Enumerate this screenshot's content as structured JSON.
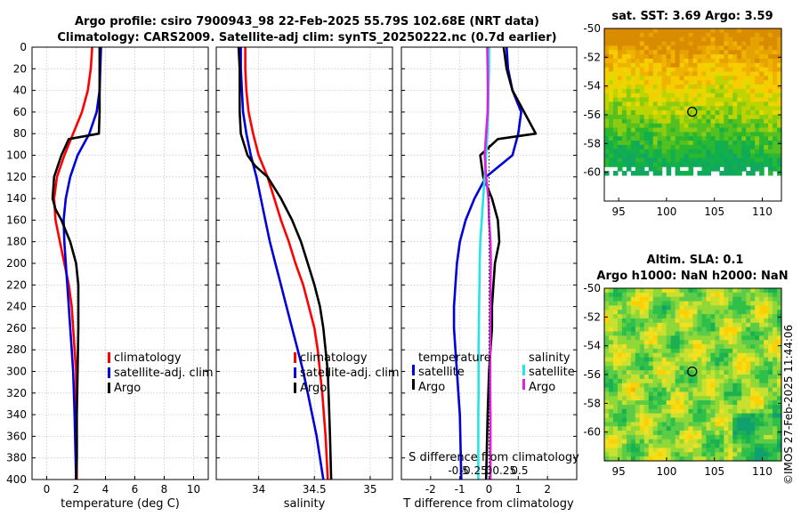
{
  "title": {
    "line1": "Argo profile: csiro 7900943_98 22-Feb-2025 55.79S 102.68E (NRT data)",
    "line2": "Climatology: CARS2009. Satellite-adj clim: synTS_20250222.nc (0.7d earlier)"
  },
  "colors": {
    "climatology": "#ff0000",
    "satellite_adj": "#0000dd",
    "argo": "#000000",
    "cyan": "#22e5e5",
    "magenta": "#dd22dd"
  },
  "depth_ticks": [
    "0",
    "20",
    "40",
    "60",
    "80",
    "100",
    "120",
    "140",
    "160",
    "180",
    "200",
    "220",
    "240",
    "260",
    "280",
    "300",
    "320",
    "340",
    "360",
    "380",
    "400"
  ],
  "temp_ticks": [
    "0",
    "2",
    "4",
    "6",
    "8",
    "10"
  ],
  "sal_ticks": [
    "34",
    "34.5",
    "35"
  ],
  "tdiff_ticks": [
    "-2",
    "-1",
    "0",
    "1",
    "2"
  ],
  "sdiff_ticks": [
    "-0.5",
    "-0.25",
    "0",
    "0.25",
    "0.5"
  ],
  "xlabels": {
    "temperature": "temperature (deg C)",
    "salinity": "salinity",
    "tdiff": "T difference from climatology",
    "sdiff": "S difference from climatology"
  },
  "legend_temp": [
    "climatology",
    "satellite-adj. clim",
    "Argo"
  ],
  "legend_sal": [
    "climatology",
    "satellite-adj. clim",
    "Argo"
  ],
  "legend_diff": {
    "temperature_header": "temperature",
    "salinity_header": "salinity",
    "satellite": "satellite",
    "argo": "Argo"
  },
  "map_sst": {
    "title": "sat. SST: 3.69 Argo: 3.59",
    "lat_ticks": [
      "-50",
      "-52",
      "-54",
      "-56",
      "-58",
      "-60"
    ],
    "lon_ticks": [
      "95",
      "100",
      "105",
      "110"
    ]
  },
  "map_sla": {
    "title1": "Altim. SLA: 0.1",
    "title2": "Argo h1000: NaN h2000: NaN",
    "lat_ticks": [
      "-50",
      "-52",
      "-54",
      "-56",
      "-58",
      "-60"
    ],
    "lon_ticks": [
      "95",
      "100",
      "105",
      "110"
    ]
  },
  "watermark": "©IMOS 27-Feb-2025 11:44:06",
  "chart_data": [
    {
      "type": "line",
      "title": "",
      "xlabel": "temperature (deg C)",
      "ylabel": "depth",
      "xlim": [
        -1,
        11
      ],
      "ylim": [
        400,
        0
      ],
      "series": [
        {
          "name": "climatology",
          "color": "#ff0000",
          "x": [
            3.1,
            3.0,
            2.8,
            2.4,
            1.8,
            1.2,
            0.7,
            0.5,
            0.6,
            0.9,
            1.2,
            1.5,
            1.7,
            1.8,
            1.9,
            2.0,
            2.0,
            2.05,
            2.05
          ],
          "y": [
            0,
            20,
            40,
            60,
            80,
            100,
            120,
            140,
            160,
            180,
            200,
            220,
            240,
            260,
            280,
            300,
            320,
            360,
            400
          ]
        },
        {
          "name": "satellite-adj. clim",
          "color": "#0000dd",
          "x": [
            3.7,
            3.65,
            3.6,
            3.4,
            2.9,
            2.1,
            1.6,
            1.3,
            1.15,
            1.2,
            1.3,
            1.4,
            1.5,
            1.6,
            1.7,
            1.8,
            1.9,
            2.0
          ],
          "y": [
            0,
            20,
            40,
            60,
            80,
            100,
            120,
            140,
            160,
            180,
            200,
            220,
            240,
            260,
            280,
            300,
            340,
            400
          ]
        },
        {
          "name": "Argo",
          "color": "#000000",
          "x": [
            3.6,
            3.6,
            3.6,
            3.6,
            3.55,
            1.5,
            1.0,
            0.5,
            0.4,
            0.6,
            1.0,
            1.3,
            1.6,
            1.8,
            2.0,
            2.15,
            2.15,
            2.1,
            2.05,
            2.05,
            2.0
          ],
          "y": [
            0,
            20,
            40,
            60,
            80,
            85,
            100,
            120,
            140,
            150,
            160,
            170,
            180,
            190,
            200,
            220,
            260,
            300,
            340,
            380,
            400
          ]
        }
      ]
    },
    {
      "type": "line",
      "xlabel": "salinity",
      "ylabel": "depth",
      "xlim": [
        33.62,
        35.2
      ],
      "ylim": [
        400,
        0
      ],
      "series": [
        {
          "name": "climatology",
          "color": "#ff0000",
          "x": [
            33.88,
            33.88,
            33.89,
            33.91,
            33.95,
            34.0,
            34.08,
            34.14,
            34.2,
            34.27,
            34.33,
            34.4,
            34.45,
            34.5,
            34.53,
            34.55,
            34.57,
            34.6,
            34.62
          ],
          "y": [
            0,
            20,
            40,
            60,
            80,
            100,
            120,
            140,
            160,
            180,
            200,
            220,
            240,
            260,
            280,
            300,
            320,
            360,
            400
          ]
        },
        {
          "name": "satellite-adj. clim",
          "color": "#0000dd",
          "x": [
            33.84,
            33.84,
            33.85,
            33.86,
            33.89,
            33.93,
            33.98,
            34.02,
            34.06,
            34.1,
            34.15,
            34.2,
            34.25,
            34.3,
            34.35,
            34.4,
            34.44,
            34.48,
            34.52,
            34.55,
            34.58
          ],
          "y": [
            0,
            20,
            40,
            60,
            80,
            100,
            120,
            140,
            160,
            180,
            200,
            220,
            240,
            260,
            280,
            300,
            320,
            340,
            360,
            380,
            400
          ]
        },
        {
          "name": "Argo",
          "color": "#000000",
          "x": [
            33.82,
            33.83,
            33.83,
            33.83,
            33.84,
            33.87,
            33.9,
            33.97,
            34.08,
            34.2,
            34.3,
            34.38,
            34.44,
            34.5,
            34.55,
            34.58,
            34.6,
            34.62,
            34.63,
            34.64,
            34.65
          ],
          "y": [
            0,
            20,
            40,
            60,
            80,
            90,
            100,
            110,
            120,
            140,
            160,
            180,
            200,
            220,
            240,
            260,
            280,
            300,
            330,
            360,
            400
          ]
        }
      ]
    },
    {
      "type": "line",
      "xlabel": "T difference from climatology",
      "xlabel2": "S difference from climatology",
      "xlim": [
        -3,
        3
      ],
      "ylim": [
        400,
        0
      ],
      "series": [
        {
          "name": "temperature satellite",
          "color": "#0000dd",
          "x": [
            0.6,
            0.65,
            0.8,
            1.1,
            1.0,
            0.8,
            -0.1,
            -0.5,
            -0.8,
            -1.0,
            -1.1,
            -1.15,
            -1.2,
            -1.2,
            -1.15,
            -1.1,
            -1.05,
            -1.0,
            -0.95
          ],
          "y": [
            0,
            20,
            40,
            60,
            80,
            100,
            120,
            140,
            160,
            180,
            200,
            220,
            240,
            260,
            280,
            300,
            320,
            340,
            400
          ]
        },
        {
          "name": "temperature Argo",
          "color": "#000000",
          "x": [
            0.5,
            0.6,
            0.8,
            1.2,
            1.6,
            0.3,
            -0.3,
            -0.2,
            0.1,
            0.3,
            0.35,
            0.2,
            0.15,
            0.1,
            0.1,
            0.05,
            0.0,
            -0.05,
            -0.1
          ],
          "y": [
            0,
            20,
            40,
            60,
            80,
            85,
            100,
            120,
            140,
            160,
            180,
            200,
            220,
            240,
            260,
            280,
            300,
            340,
            400
          ]
        },
        {
          "name": "salinity satellite",
          "color": "#22e5e5",
          "x": [
            0.0,
            0.0,
            -0.02,
            -0.03,
            -0.06,
            -0.1,
            -0.15,
            -0.2,
            -0.25,
            -0.3,
            -0.32,
            -0.33,
            -0.34,
            -0.35,
            -0.36,
            -0.36,
            -0.36,
            -0.37,
            -0.37,
            -0.37
          ],
          "y": [
            0,
            20,
            40,
            60,
            80,
            100,
            120,
            140,
            160,
            180,
            200,
            220,
            240,
            260,
            280,
            300,
            320,
            340,
            360,
            400
          ]
        },
        {
          "name": "salinity Argo",
          "color": "#dd22dd",
          "x": [
            -0.06,
            -0.05,
            -0.04,
            -0.05,
            -0.1,
            -0.15,
            -0.1,
            -0.02,
            0.0,
            0.05,
            0.06,
            0.05,
            0.05,
            0.04,
            0.04,
            0.04,
            0.04,
            0.05,
            0.05,
            0.05
          ],
          "y": [
            0,
            20,
            40,
            60,
            80,
            100,
            120,
            140,
            160,
            180,
            200,
            220,
            240,
            260,
            280,
            300,
            320,
            340,
            360,
            400
          ]
        }
      ]
    }
  ]
}
